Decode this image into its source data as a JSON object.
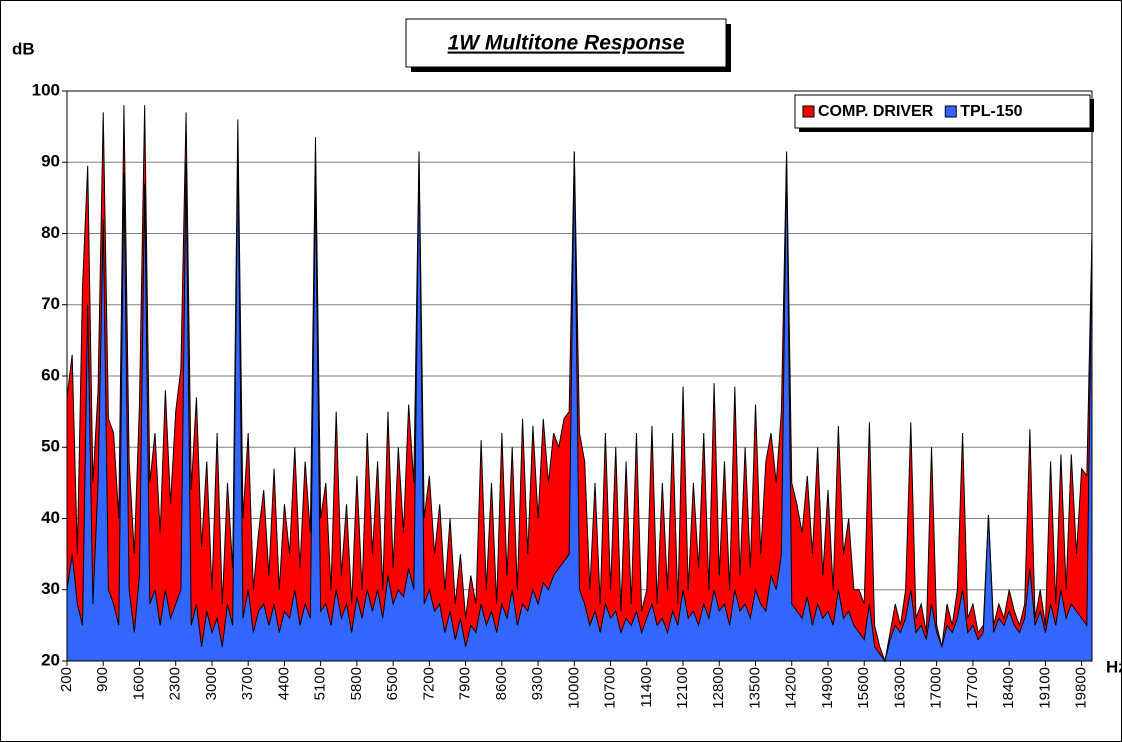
{
  "chart_data": {
    "type": "area",
    "title": "1W Multitone Response",
    "y_label": "dB",
    "x_label": "Hz",
    "categories": [
      "200",
      null,
      null,
      null,
      null,
      null,
      null,
      "900",
      null,
      null,
      null,
      null,
      null,
      null,
      "1600",
      null,
      null,
      null,
      null,
      null,
      null,
      "2300",
      null,
      null,
      null,
      null,
      null,
      null,
      "3000",
      null,
      null,
      null,
      null,
      null,
      null,
      "3700",
      null,
      null,
      null,
      null,
      null,
      null,
      "4400",
      null,
      null,
      null,
      null,
      null,
      null,
      "5100",
      null,
      null,
      null,
      null,
      null,
      null,
      "5800",
      null,
      null,
      null,
      null,
      null,
      null,
      "6500",
      null,
      null,
      null,
      null,
      null,
      null,
      "7200",
      null,
      null,
      null,
      null,
      null,
      null,
      "7900",
      null,
      null,
      null,
      null,
      null,
      null,
      "8600",
      null,
      null,
      null,
      null,
      null,
      null,
      "9300",
      null,
      null,
      null,
      null,
      null,
      null,
      "10000",
      null,
      null,
      null,
      null,
      null,
      null,
      "10700",
      null,
      null,
      null,
      null,
      null,
      null,
      "11400",
      null,
      null,
      null,
      null,
      null,
      null,
      "12100",
      null,
      null,
      null,
      null,
      null,
      null,
      "12800",
      null,
      null,
      null,
      null,
      null,
      null,
      "13500",
      null,
      null,
      null,
      null,
      null,
      null,
      "14200",
      null,
      null,
      null,
      null,
      null,
      null,
      "14900",
      null,
      null,
      null,
      null,
      null,
      null,
      "15600",
      null,
      null,
      null,
      null,
      null,
      null,
      "16300",
      null,
      null,
      null,
      null,
      null,
      null,
      "17000",
      null,
      null,
      null,
      null,
      null,
      null,
      "17700",
      null,
      null,
      null,
      null,
      null,
      null,
      "18400",
      null,
      null,
      null,
      null,
      null,
      null,
      "19100",
      null,
      null,
      null,
      null,
      null,
      null,
      "19800",
      null,
      null
    ],
    "series": [
      {
        "name": "COMP. DRIVER",
        "color": "#ff0000",
        "values": [
          57,
          63,
          35,
          72.5,
          89.5,
          45,
          58,
          97,
          54,
          52,
          40,
          98,
          48,
          35,
          56,
          98,
          45,
          52,
          38,
          58,
          42,
          55,
          61,
          97,
          44,
          57,
          36,
          48,
          30,
          52,
          28,
          45,
          33,
          96,
          40,
          52,
          30,
          38,
          44,
          32,
          47,
          30,
          42,
          35,
          50,
          33,
          48,
          38,
          93.5,
          40,
          45,
          30,
          55,
          32,
          42,
          28,
          46,
          30,
          52,
          35,
          48,
          30,
          55,
          33,
          50,
          38,
          56,
          45,
          91.5,
          40,
          46,
          35,
          42,
          30,
          40,
          28,
          35,
          26,
          32,
          28,
          51,
          30,
          45,
          28,
          52,
          32,
          50,
          30,
          54,
          35,
          53,
          40,
          54,
          45,
          52,
          50,
          54,
          55,
          91.5,
          52,
          48,
          30,
          45,
          28,
          52,
          30,
          50,
          27,
          48,
          28,
          52,
          27,
          30,
          53,
          28,
          45,
          30,
          52,
          28,
          58.5,
          30,
          45,
          33,
          52,
          30,
          59,
          32,
          48,
          30,
          58.5,
          32,
          50,
          33,
          56,
          35,
          48,
          52,
          45,
          55,
          91.5,
          45,
          42,
          38,
          46,
          35,
          50,
          32,
          44,
          30,
          53,
          35,
          40,
          30,
          30,
          28,
          53.5,
          25,
          22,
          20,
          24,
          28,
          25,
          30,
          53.5,
          26,
          28,
          24,
          50,
          25,
          22,
          28,
          25,
          30,
          52,
          26,
          28,
          24,
          25,
          40.5,
          25,
          28,
          26,
          30,
          27,
          25,
          28,
          52.5,
          26,
          30,
          25,
          48,
          28,
          49,
          30,
          49,
          35,
          47,
          46,
          80
        ]
      },
      {
        "name": "TPL-150",
        "color": "#3366ff",
        "values": [
          30,
          35,
          28,
          25,
          70,
          28,
          45,
          82,
          30,
          28,
          25,
          88.5,
          30,
          24,
          32,
          87,
          28,
          30,
          25,
          30,
          26,
          28,
          30,
          90,
          25,
          28,
          22,
          27,
          24,
          26,
          22,
          28,
          25,
          92,
          26,
          30,
          24,
          27,
          28,
          25,
          28,
          24,
          27,
          26,
          30,
          25,
          28,
          26,
          88,
          27,
          28,
          25,
          30,
          26,
          28,
          24,
          29,
          26,
          30,
          27,
          30,
          26,
          32,
          28,
          30,
          29,
          33,
          30,
          91,
          28,
          30,
          27,
          28,
          24,
          27,
          23,
          26,
          22,
          25,
          24,
          28,
          25,
          27,
          24,
          28,
          26,
          30,
          25,
          28,
          27,
          30,
          28,
          31,
          30,
          32,
          33,
          34,
          35,
          91.5,
          30,
          28,
          25,
          27,
          24,
          28,
          26,
          27,
          24,
          26,
          25,
          27,
          24,
          26,
          28,
          25,
          26,
          24,
          27,
          25,
          30,
          26,
          27,
          25,
          28,
          26,
          30,
          27,
          28,
          25,
          30,
          27,
          28,
          26,
          30,
          28,
          27,
          32,
          30,
          35,
          91,
          28,
          27,
          26,
          29,
          25,
          28,
          26,
          27,
          25,
          30,
          26,
          27,
          25,
          24,
          23,
          28,
          22,
          21,
          20,
          23,
          25,
          24,
          26,
          30,
          24,
          25,
          23,
          28,
          24,
          22,
          25,
          24,
          26,
          30,
          24,
          25,
          23,
          24,
          40.5,
          24,
          26,
          25,
          27,
          25,
          24,
          26,
          33,
          25,
          27,
          24,
          28,
          25,
          30,
          26,
          28,
          27,
          26,
          25,
          80
        ]
      }
    ],
    "ylim": [
      20,
      100
    ],
    "yticks": [
      20,
      30,
      40,
      50,
      60,
      70,
      80,
      90,
      100
    ],
    "grid": true,
    "legend": "top-right"
  }
}
